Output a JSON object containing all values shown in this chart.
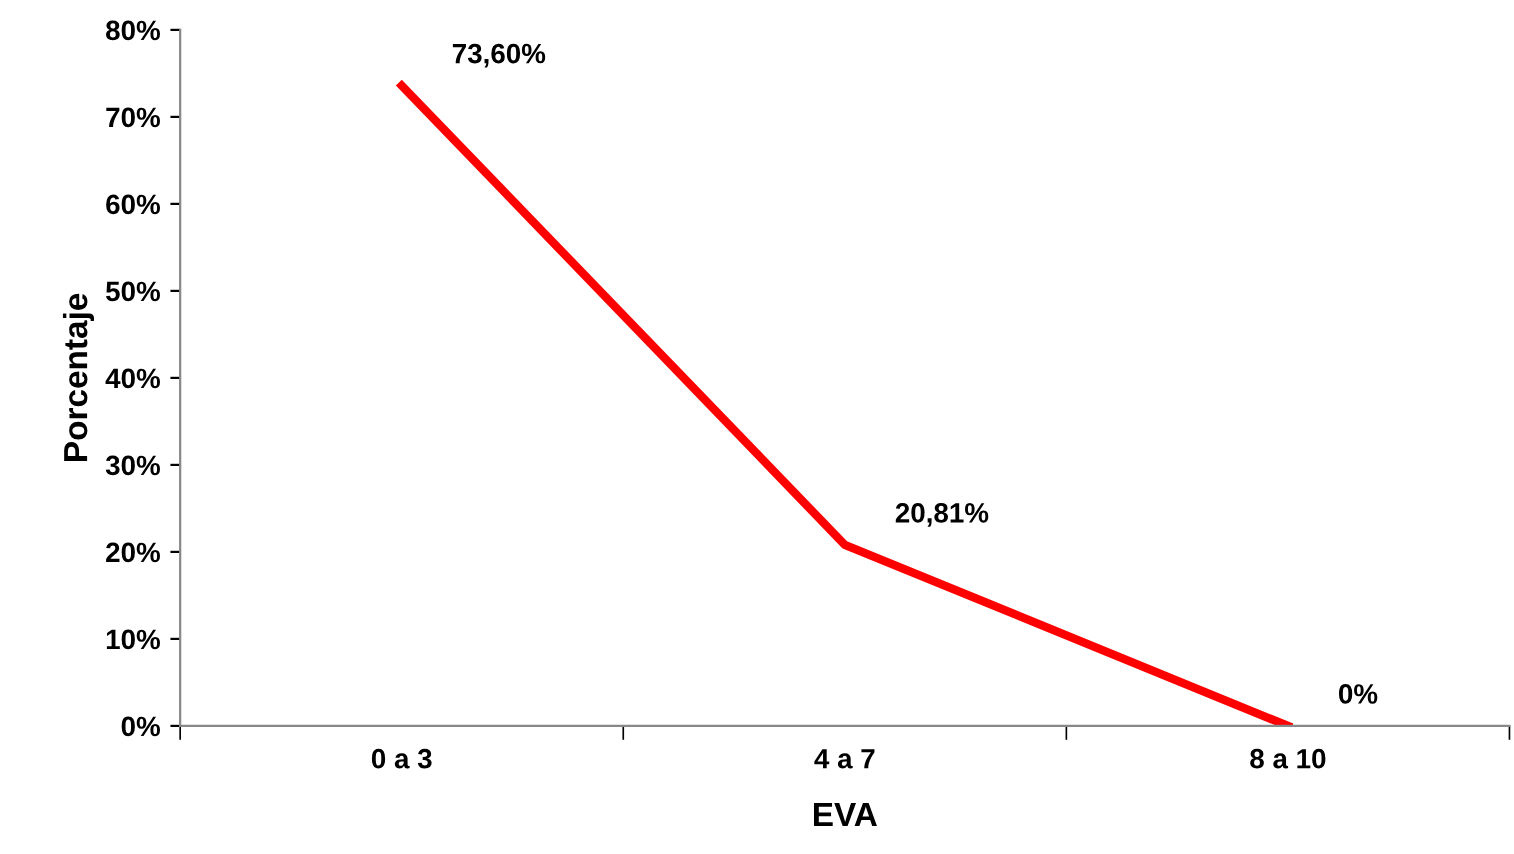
{
  "chart_data": {
    "type": "line",
    "xlabel": "EVA",
    "ylabel": "Porcentaje",
    "categories": [
      "0 a 3",
      "4 a 7",
      "8 a 10"
    ],
    "series": [
      {
        "color": "#ff0000",
        "values": [
          73.6,
          20.81,
          0
        ],
        "value_labels": [
          "73,60%",
          "20,81%",
          "0%"
        ]
      }
    ],
    "ylim": [
      0,
      80
    ],
    "yticks": [
      {
        "value": 0,
        "label": "0%"
      },
      {
        "value": 10,
        "label": "10%"
      },
      {
        "value": 20,
        "label": "20%"
      },
      {
        "value": 30,
        "label": "30%"
      },
      {
        "value": 40,
        "label": "40%"
      },
      {
        "value": 50,
        "label": "50%"
      },
      {
        "value": 60,
        "label": "60%"
      },
      {
        "value": 70,
        "label": "70%"
      },
      {
        "value": 80,
        "label": "80%"
      }
    ],
    "grid": false,
    "legend": false,
    "marker": "none",
    "line_style": "solid"
  }
}
